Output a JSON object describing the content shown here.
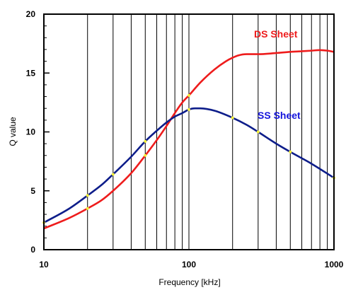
{
  "chart_data": {
    "type": "line",
    "xlabel": "Frequency [kHz]",
    "ylabel": "Q value",
    "xscale": "log",
    "xlim": [
      10,
      1000
    ],
    "ylim": [
      0,
      20
    ],
    "x_ticks": [
      "10",
      "100",
      "1000"
    ],
    "y_ticks": [
      "0",
      "5",
      "10",
      "15",
      "20"
    ],
    "grid": "vertical log gridlines",
    "series": [
      {
        "name": "DS Sheet",
        "color": "#ee1c1c",
        "x": [
          10,
          15,
          20,
          25,
          30,
          40,
          50,
          60,
          70,
          80,
          90,
          100,
          120,
          150,
          180,
          200,
          220,
          250,
          300,
          400,
          500,
          600,
          700,
          800,
          900,
          1000
        ],
        "y": [
          1.8,
          2.7,
          3.5,
          4.2,
          5.0,
          6.5,
          8.0,
          9.3,
          10.5,
          11.6,
          12.5,
          13.1,
          14.2,
          15.3,
          16.0,
          16.3,
          16.5,
          16.6,
          16.6,
          16.7,
          16.8,
          16.85,
          16.9,
          16.95,
          16.9,
          16.8
        ]
      },
      {
        "name": "SS Sheet",
        "color": "#0d1d8a",
        "x": [
          10,
          15,
          20,
          25,
          30,
          40,
          50,
          60,
          70,
          80,
          90,
          100,
          110,
          120,
          150,
          200,
          250,
          300,
          400,
          500,
          700,
          1000
        ],
        "y": [
          2.3,
          3.5,
          4.6,
          5.5,
          6.4,
          7.9,
          9.2,
          10.1,
          10.8,
          11.3,
          11.6,
          11.9,
          12.0,
          12.0,
          11.8,
          11.2,
          10.6,
          10.0,
          9.0,
          8.3,
          7.3,
          6.1
        ]
      }
    ],
    "markers": {
      "color": "#f5f13a",
      "DS Sheet": [
        20,
        50,
        100
      ],
      "SS Sheet": [
        10,
        20,
        30,
        50,
        100,
        200,
        300,
        500,
        1000
      ]
    },
    "series_labels": {
      "DS Sheet": "DS Sheet",
      "SS Sheet": "SS Sheet"
    }
  }
}
